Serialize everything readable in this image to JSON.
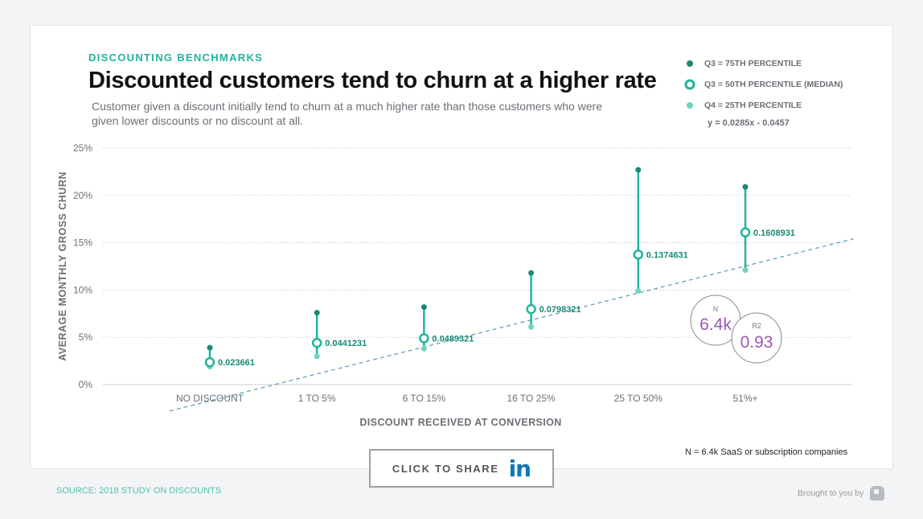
{
  "header": {
    "eyebrow": "DISCOUNTING BENCHMARKS",
    "title": "Discounted customers tend to churn at a higher rate",
    "subtitle": "Customer given a discount initially tend to churn at a much higher rate than those customers who were given lower discounts or no discount at all."
  },
  "legend": {
    "items": [
      "Q3 = 75TH PERCENTILE",
      "Q3 = 50TH PERCENTILE (MEDIAN)",
      "Q4 = 25TH PERCENTILE"
    ],
    "equation": "y = 0.0285x - 0.0457"
  },
  "stats": {
    "n_label": "N",
    "n_value": "6.4k",
    "r2_label": "R2",
    "r2_value": "0.93"
  },
  "footnote": "N = 6.4k SaaS or subscription companies",
  "share": {
    "label": "CLICK TO SHARE",
    "icon_text": "in"
  },
  "footer": {
    "source": "SOURCE: 2018 STUDY ON DISCOUNTS",
    "brought": "Brought to you by"
  },
  "colors": {
    "q75": "#1a8a74",
    "median": "#1fb59c",
    "q25": "#6fd3bf",
    "trend": "#5a9bb5",
    "stat_value": "#9b59b6"
  },
  "chart_data": {
    "type": "scatter",
    "xlabel": "DISCOUNT RECEIVED AT CONVERSION",
    "ylabel": "AVERAGE MONTHLY GROSS CHURN",
    "categories": [
      "NO DISCOUNT",
      "1 TO 5%",
      "6 TO 15%",
      "16 TO 25%",
      "25 TO 50%",
      "51%+"
    ],
    "yticks": [
      "0%",
      "5%",
      "10%",
      "15%",
      "20%",
      "25%"
    ],
    "ylim": [
      0,
      0.25
    ],
    "grid": true,
    "legend_position": "top-right",
    "series": [
      {
        "name": "Q3 = 75TH PERCENTILE",
        "values": [
          0.039,
          0.076,
          0.082,
          0.118,
          0.227,
          0.209
        ]
      },
      {
        "name": "Q3 = 50TH PERCENTILE (MEDIAN)",
        "values": [
          0.023661,
          0.0441231,
          0.0489321,
          0.0798321,
          0.1374631,
          0.1608931
        ],
        "labels": [
          "0.023661",
          "0.0441231",
          "0.0489321",
          "0.0798321",
          "0.1374631",
          "0.1608931"
        ]
      },
      {
        "name": "Q4 = 25TH PERCENTILE",
        "values": [
          0.019,
          0.03,
          0.038,
          0.061,
          0.099,
          0.121
        ]
      }
    ],
    "trendline": {
      "slope": 0.0285,
      "intercept": -0.0457
    }
  }
}
